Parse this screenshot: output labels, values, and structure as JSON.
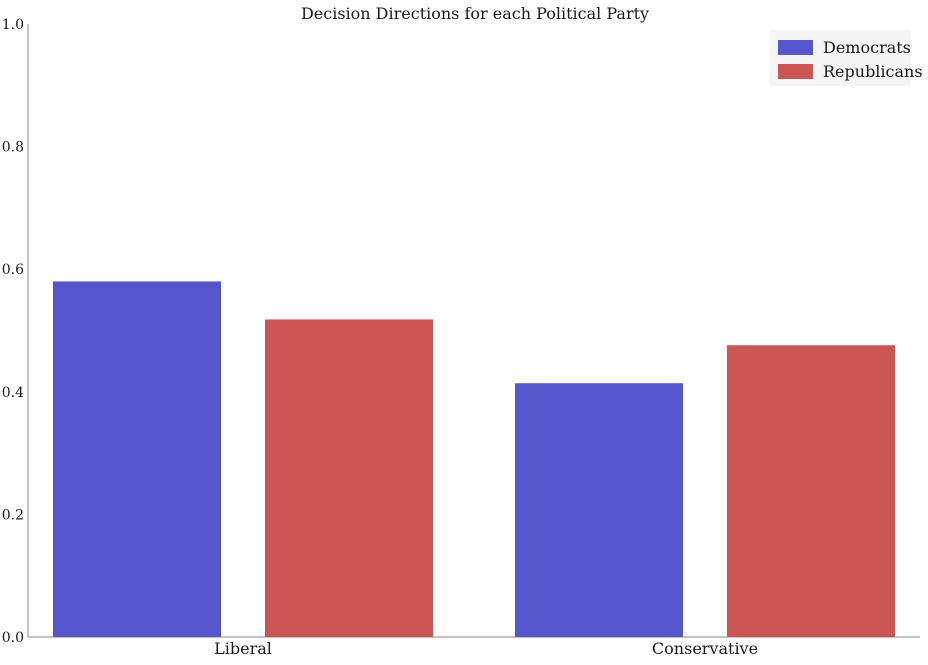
{
  "chart_data": {
    "type": "bar",
    "title": "Decision Directions for each Political Party",
    "xlabel": "",
    "ylabel": "",
    "categories": [
      "Liberal",
      "Conservative"
    ],
    "series": [
      {
        "name": "Democrats",
        "values": [
          0.58,
          0.414
        ],
        "color": "#5555cc"
      },
      {
        "name": "Republicans",
        "values": [
          0.518,
          0.476
        ],
        "color": "#cc5555"
      }
    ],
    "ylim": [
      0,
      1.0
    ],
    "yticks": [
      "0.0",
      "0.2",
      "0.4",
      "0.6",
      "0.8",
      "1.0"
    ],
    "grid": false,
    "legend_position": "top-right"
  }
}
